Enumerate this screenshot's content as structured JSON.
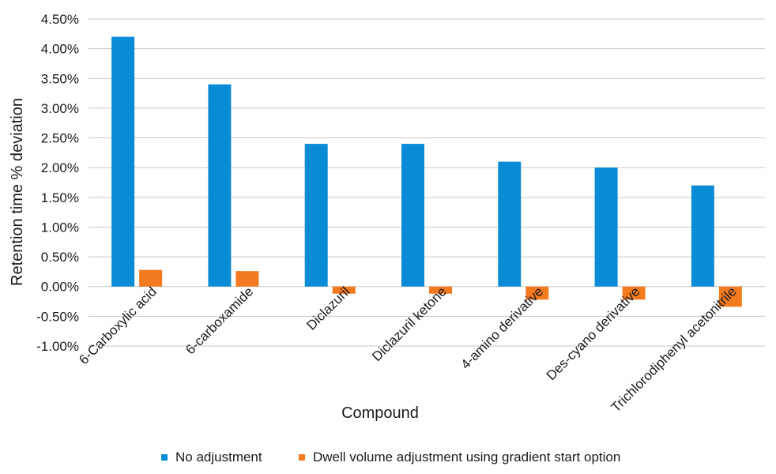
{
  "chart_data": {
    "type": "bar",
    "title": "",
    "xlabel": "Compound",
    "ylabel": "Retention time % deviation",
    "ylim": [
      -1.0,
      4.5
    ],
    "ytick_step": 0.5,
    "ytick_labels": [
      "-1.00%",
      "-0.50%",
      "0.00%",
      "0.50%",
      "1.00%",
      "1.50%",
      "2.00%",
      "2.50%",
      "3.00%",
      "3.50%",
      "4.00%",
      "4.50%"
    ],
    "grid": "horizontal",
    "legend_position": "bottom",
    "categories": [
      "6-Carboxylic acid",
      "6-carboxamide",
      "Diclazuril",
      "Diclazuril ketone",
      "4-amino derivative",
      "Des-cyano derivative",
      "Trichlorodiphenyl acetonitrile"
    ],
    "series": [
      {
        "name": "No adjustment",
        "color": "#0a8bd6",
        "values": [
          4.2,
          3.4,
          2.4,
          2.4,
          2.1,
          2.0,
          1.7
        ]
      },
      {
        "name": "Dwell volume adjustment using gradient start option",
        "color": "#f47a20",
        "values": [
          0.28,
          0.26,
          -0.12,
          -0.12,
          -0.22,
          -0.22,
          -0.34
        ]
      }
    ]
  }
}
